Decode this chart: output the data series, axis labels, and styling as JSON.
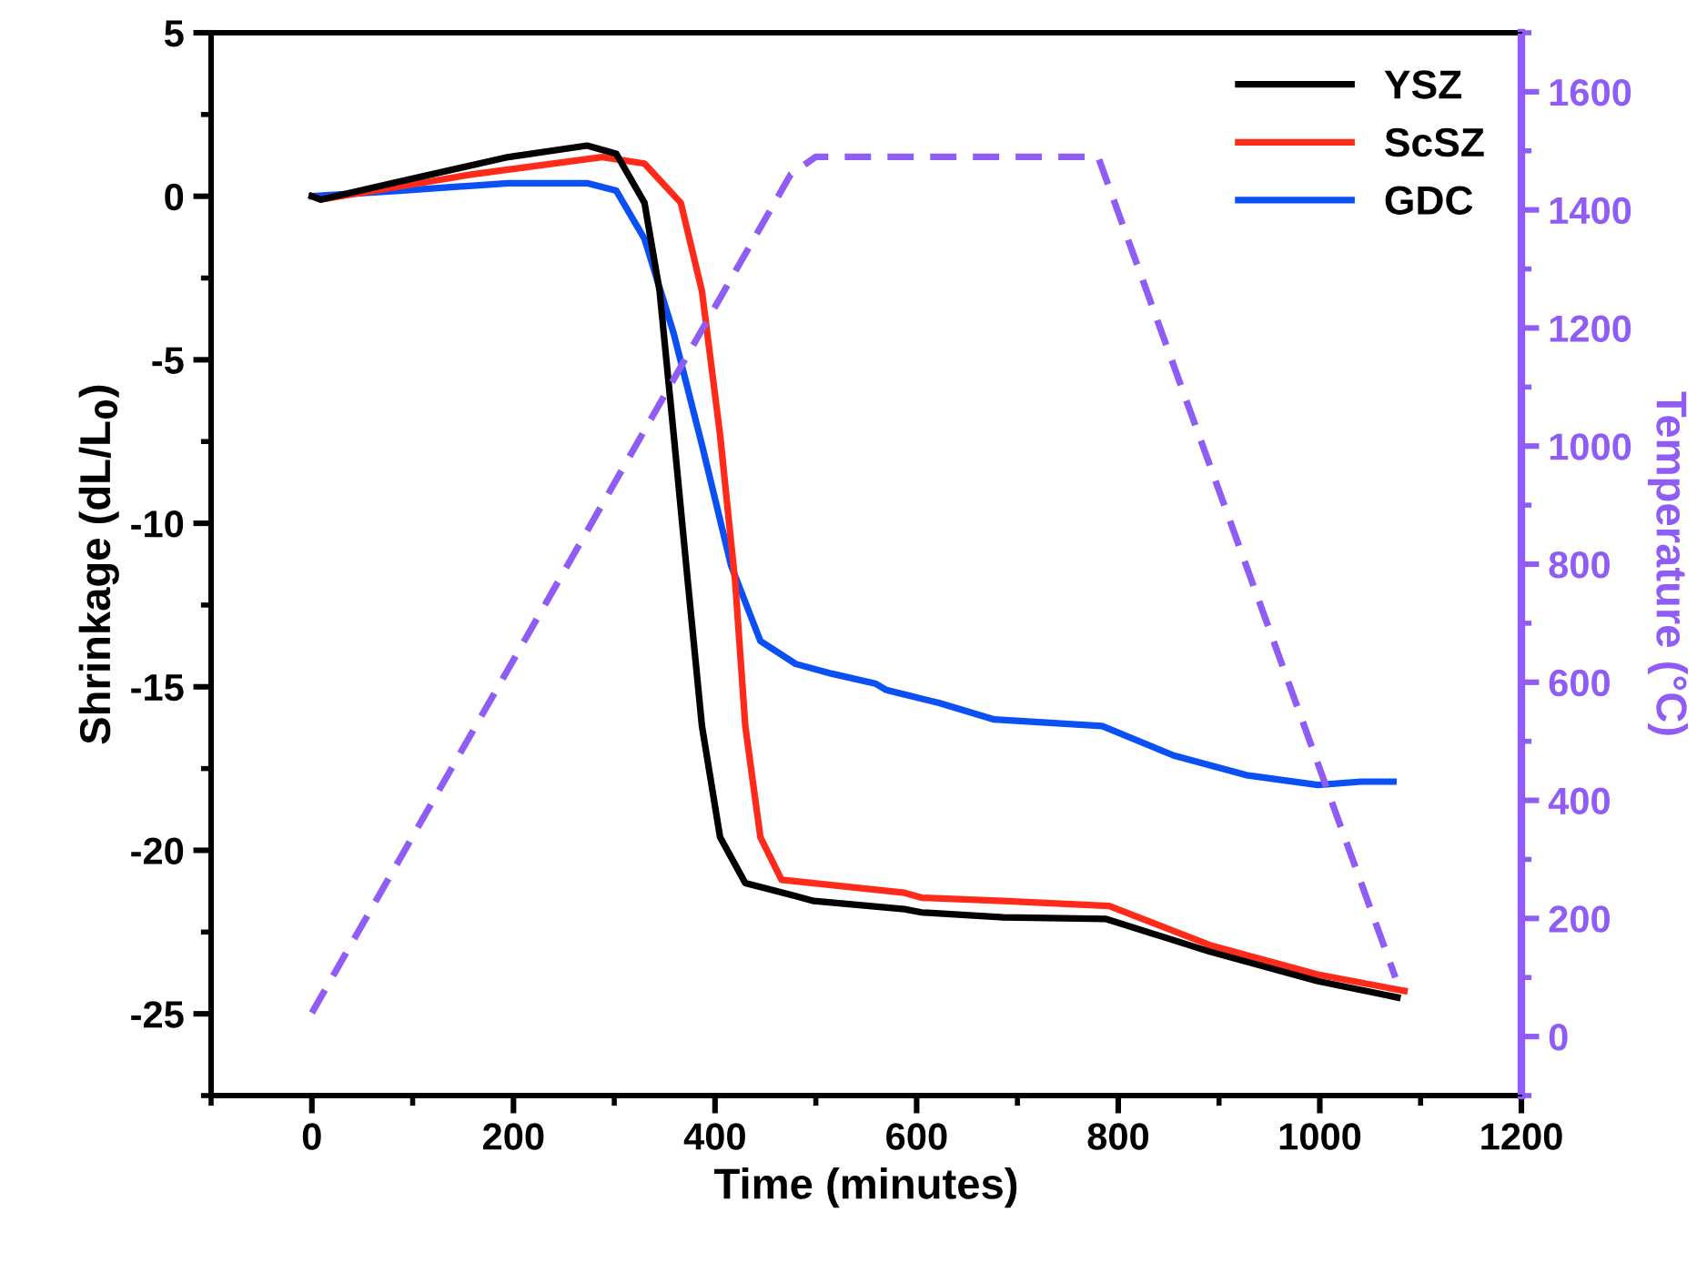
{
  "chart_data": {
    "type": "line",
    "xlabel": "Time (minutes)",
    "ylabel": "Shrinkage (dL/L$_{0}$)",
    "y2label": "Temperature (°C)",
    "xlim": [
      -100,
      1200
    ],
    "xticks": [
      0,
      200,
      400,
      600,
      800,
      1000,
      1200
    ],
    "ylim": [
      -27.5,
      5
    ],
    "yticks": [
      -25,
      -20,
      -15,
      -10,
      -5,
      0,
      5
    ],
    "y2lim": [
      -100,
      1700
    ],
    "y2ticks": [
      0,
      200,
      400,
      600,
      800,
      1000,
      1200,
      1400,
      1600
    ],
    "legend": "top right",
    "grid": false,
    "series": [
      {
        "name": "YSZ",
        "color": "#000000",
        "x": [
          0,
          9,
          87,
          195,
          273,
          302,
          330,
          345,
          359,
          373,
          387,
          405,
          430,
          480,
          498,
          588,
          605,
          686,
          788,
          891,
          998,
          1077
        ],
        "values": [
          0,
          -0.1,
          0.45,
          1.2,
          1.55,
          1.3,
          -0.2,
          -2.9,
          -7.3,
          -11.8,
          -16.2,
          -19.6,
          -21,
          -21.4,
          -21.55,
          -21.8,
          -21.9,
          -22.05,
          -22.1,
          -23.1,
          -24,
          -24.5
        ]
      },
      {
        "name": "ScSZ",
        "color": "#ff2a1a",
        "x": [
          0,
          9,
          159,
          288,
          330,
          366,
          387,
          405,
          420,
          430,
          445,
          466,
          588,
          605,
          686,
          791,
          891,
          998,
          1084
        ],
        "values": [
          0,
          -0.1,
          0.67,
          1.2,
          1.0,
          -0.2,
          -2.9,
          -7.3,
          -11.8,
          -16.2,
          -19.6,
          -20.9,
          -21.3,
          -21.45,
          -21.55,
          -21.7,
          -22.9,
          -23.8,
          -24.3
        ]
      },
      {
        "name": "GDC",
        "color": "#0a50f5",
        "x": [
          0,
          87,
          195,
          273,
          302,
          330,
          359,
          387,
          416,
          445,
          480,
          516,
          559,
          570,
          623,
          677,
          784,
          855,
          927,
          998,
          1041,
          1073
        ],
        "values": [
          0,
          0.17,
          0.4,
          0.4,
          0.17,
          -1.3,
          -4.2,
          -7.6,
          -11.3,
          -13.6,
          -14.3,
          -14.6,
          -14.9,
          -15.1,
          -15.5,
          -16,
          -16.2,
          -17.1,
          -17.7,
          -18,
          -17.9,
          -17.9
        ]
      },
      {
        "color": "#8f5cf5",
        "axis": "y2",
        "line_style": "dashed",
        "x": [
          0,
          475,
          500,
          780,
          1075
        ],
        "values": [
          40,
          1460,
          1490,
          1490,
          100
        ]
      }
    ]
  }
}
